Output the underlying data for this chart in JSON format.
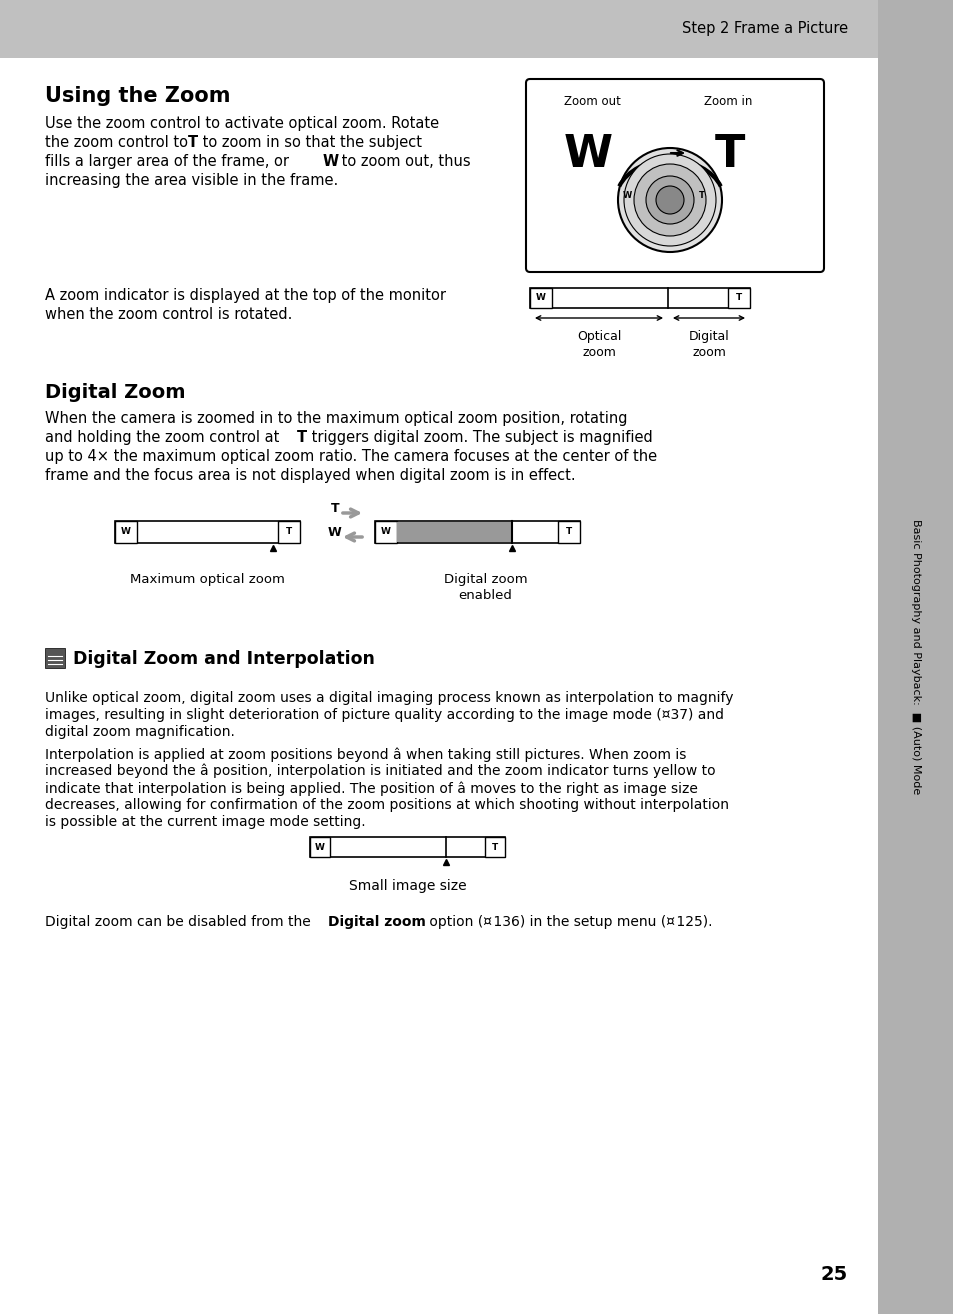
{
  "bg_color": "#c8c8c8",
  "page_bg": "#ffffff",
  "header_text": "Step 2 Frame a Picture",
  "section1_title": "Using the Zoom",
  "section2_title": "Digital Zoom",
  "section3_title": "Digital Zoom and Interpolation",
  "sidebar_text": "Basic Photography and Playback:  (Auto) Mode",
  "page_number": "25",
  "label_zoom_out": "Zoom out",
  "label_zoom_in": "Zoom in",
  "label_optical_zoom": "Optical\nzoom",
  "label_digital_zoom": "Digital\nzoom",
  "label_max_optical": "Maximum optical zoom",
  "label_digital_enabled": "Digital zoom\nenabled",
  "label_small_image": "Small image size",
  "gray_sidebar_color": "#b0b0b0",
  "header_bg_color": "#c0c0c0"
}
